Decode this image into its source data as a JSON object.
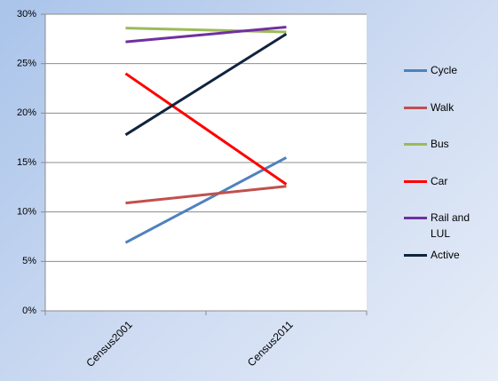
{
  "chart_data": {
    "type": "line",
    "categories": [
      "Census2001",
      "Census2011"
    ],
    "series": [
      {
        "name": "Cycle",
        "color": "#4f81bd",
        "values": [
          6.9,
          15.5
        ]
      },
      {
        "name": "Walk",
        "color": "#c0504d",
        "values": [
          10.9,
          12.6
        ]
      },
      {
        "name": "Bus",
        "color": "#9bbb59",
        "values": [
          28.6,
          28.2
        ]
      },
      {
        "name": "Car",
        "color": "#ff0000",
        "values": [
          24.0,
          12.8
        ]
      },
      {
        "name": "Rail and LUL",
        "color": "#7030a0",
        "values": [
          27.2,
          28.7
        ]
      },
      {
        "name": "Active",
        "color": "#0f243e",
        "values": [
          17.8,
          28.0
        ]
      }
    ],
    "ylim": [
      0,
      30
    ],
    "yticks": [
      {
        "value": 0,
        "label": "0%"
      },
      {
        "value": 5,
        "label": "5%"
      },
      {
        "value": 10,
        "label": "10%"
      },
      {
        "value": 15,
        "label": "15%"
      },
      {
        "value": 20,
        "label": "20%"
      },
      {
        "value": 25,
        "label": "25%"
      },
      {
        "value": 30,
        "label": "30%"
      }
    ],
    "grid": true,
    "legend": "right"
  }
}
